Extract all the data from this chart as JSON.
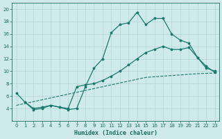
{
  "line1": {
    "x": [
      0,
      1,
      2,
      3,
      4,
      5,
      6,
      7,
      8,
      9,
      10,
      11,
      12,
      13,
      14,
      15,
      16,
      17,
      18,
      19,
      20,
      21,
      22,
      23
    ],
    "y": [
      4.5,
      4.8,
      5.1,
      5.4,
      5.7,
      6.0,
      6.3,
      6.6,
      6.9,
      7.2,
      7.5,
      7.8,
      8.1,
      8.4,
      8.7,
      9.0,
      9.1,
      9.2,
      9.3,
      9.4,
      9.5,
      9.6,
      9.65,
      9.7
    ],
    "style": "--",
    "color": "#1a7a6e",
    "linewidth": 0.8
  },
  "line2": {
    "x": [
      0,
      1,
      2,
      3,
      4,
      5,
      6,
      7,
      8,
      9,
      10,
      11,
      12,
      13,
      14,
      15,
      16,
      17,
      18,
      19,
      20,
      21,
      22,
      23
    ],
    "y": [
      6.5,
      5.0,
      4.0,
      4.2,
      4.5,
      4.2,
      4.0,
      7.5,
      7.8,
      8.0,
      8.5,
      9.2,
      10.0,
      11.0,
      12.0,
      13.0,
      13.5,
      14.0,
      13.5,
      13.5,
      13.8,
      12.2,
      10.5,
      10.0
    ],
    "style": "-",
    "color": "#1a7a6e",
    "marker": "*",
    "markersize": 2.5,
    "linewidth": 0.9
  },
  "line3": {
    "x": [
      1,
      2,
      3,
      4,
      5,
      6,
      7,
      8,
      9,
      10,
      11,
      12,
      13,
      14,
      15,
      16,
      17,
      18,
      19,
      20,
      21,
      22,
      23
    ],
    "y": [
      5.0,
      3.8,
      4.0,
      4.5,
      4.2,
      3.8,
      4.0,
      7.5,
      10.5,
      12.0,
      16.2,
      17.5,
      17.8,
      19.5,
      17.5,
      18.5,
      18.5,
      16.0,
      15.0,
      14.5,
      12.2,
      10.8,
      9.8
    ],
    "style": "-",
    "color": "#1a7a6e",
    "marker": "*",
    "markersize": 2.5,
    "linewidth": 0.9
  },
  "xlabel": "Humidex (Indice chaleur)",
  "xlim": [
    -0.5,
    23.5
  ],
  "ylim": [
    2,
    21
  ],
  "yticks": [
    4,
    6,
    8,
    10,
    12,
    14,
    16,
    18,
    20
  ],
  "xticks": [
    0,
    1,
    2,
    3,
    4,
    5,
    6,
    7,
    8,
    9,
    10,
    11,
    12,
    13,
    14,
    15,
    16,
    17,
    18,
    19,
    20,
    21,
    22,
    23
  ],
  "bg_color": "#ceeaea",
  "grid_color": "#b8d8d8",
  "line_color": "#1a6e62",
  "label_fontsize": 6,
  "tick_fontsize": 5
}
